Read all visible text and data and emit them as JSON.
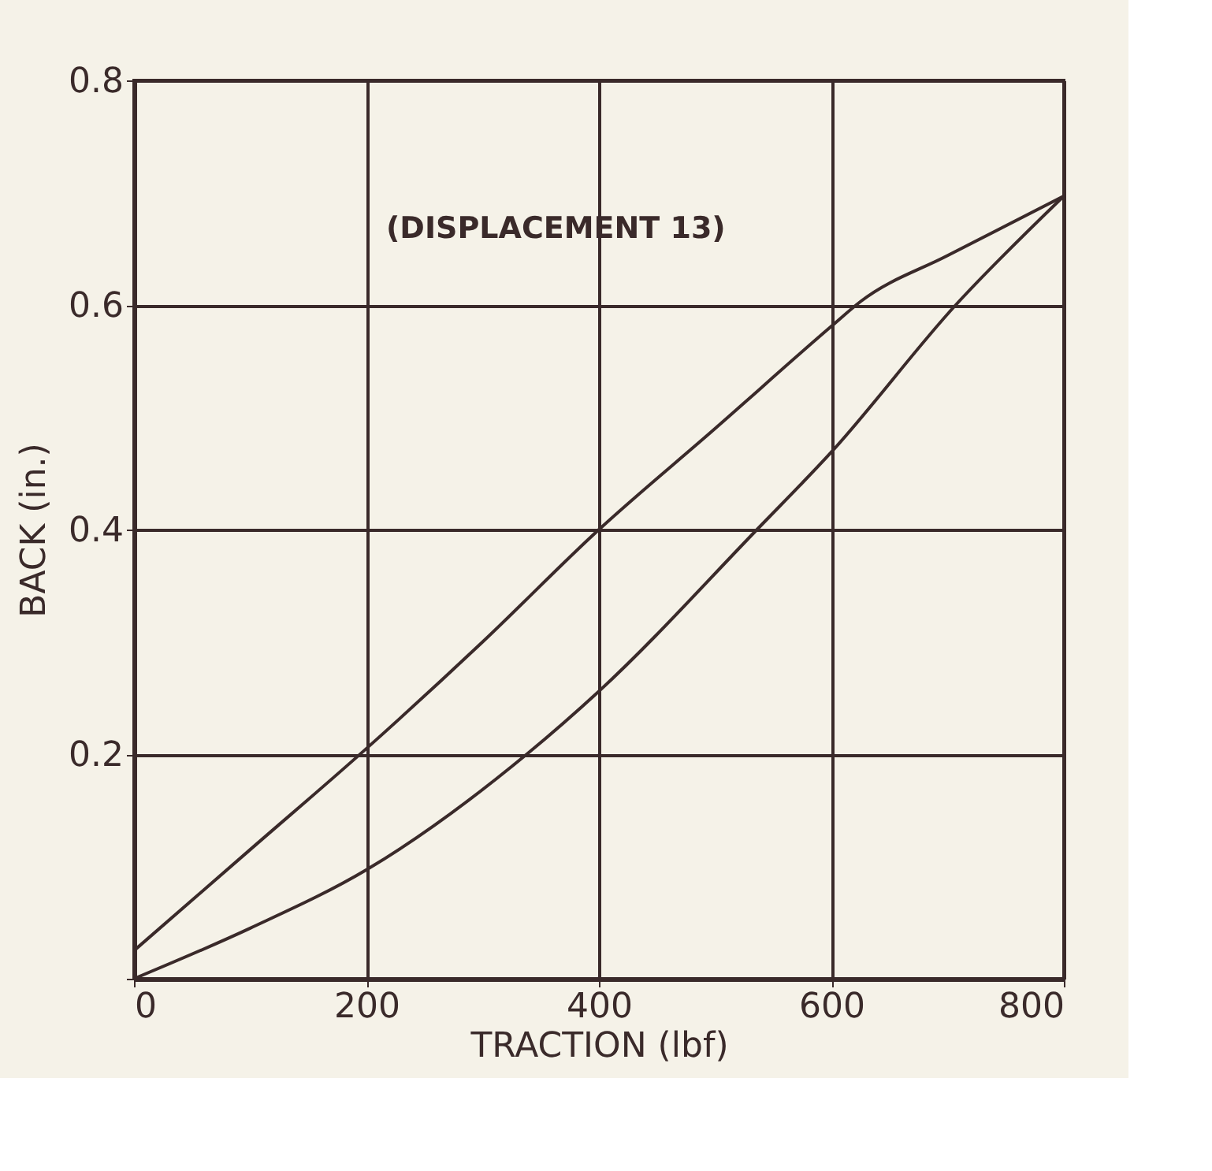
{
  "chart_data": {
    "type": "line",
    "xlabel": "TRACTION (lbf)",
    "ylabel": "BACK (in.)",
    "annotations": [
      "(DISPLACEMENT 13)"
    ],
    "xlim": [
      0,
      800
    ],
    "ylim": [
      0,
      0.8
    ],
    "xticks": [
      0,
      200,
      400,
      600,
      800
    ],
    "yticks": [
      {
        "value": 0,
        "label": null
      },
      0.2,
      0.4,
      0.6,
      0.8
    ],
    "grid": true,
    "marker": "none",
    "line_style": "solid",
    "series": [
      {
        "color": "#3a2a2a",
        "x": [
          0,
          100,
          200,
          300,
          400,
          500,
          600,
          625,
          700,
          800
        ],
        "values": [
          0.025,
          0.115,
          0.205,
          0.3,
          0.4,
          0.49,
          0.581,
          0.603,
          0.644,
          0.697
        ]
      },
      {
        "color": "#3a2a2a",
        "x": [
          0,
          100,
          200,
          338,
          400,
          536,
          600,
          707,
          800
        ],
        "values": [
          0,
          0.045,
          0.097,
          0.2,
          0.256,
          0.4,
          0.469,
          0.6,
          0.697
        ]
      }
    ]
  }
}
